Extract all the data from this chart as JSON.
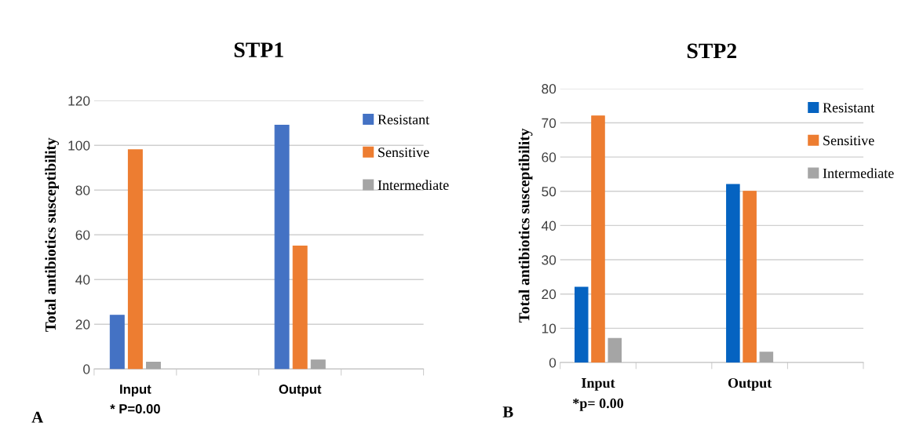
{
  "chart_data": [
    {
      "type": "bar",
      "title": "STP1",
      "ylabel": "Total antibiotics susceptibility",
      "categories": [
        "Input",
        null,
        "Output",
        null
      ],
      "ylim": [
        0,
        120
      ],
      "yticks": [
        0,
        20,
        40,
        60,
        80,
        100,
        120
      ],
      "grid": "y",
      "legend": "top right",
      "annotations": [
        "* P=0.00",
        "A"
      ],
      "series": [
        {
          "name": "Resistant",
          "color": "#4472c4",
          "values": [
            24,
            null,
            109,
            null
          ]
        },
        {
          "name": "Sensitive",
          "color": "#ed7d31",
          "values": [
            98,
            null,
            55,
            null
          ]
        },
        {
          "name": "Intermediate",
          "color": "#a5a5a5",
          "values": [
            3,
            null,
            4,
            null
          ]
        }
      ]
    },
    {
      "type": "bar",
      "title": "STP2",
      "ylabel": "Total antibiotics susceptibility",
      "categories": [
        "Input",
        null,
        "Output",
        null
      ],
      "ylim": [
        0,
        80
      ],
      "yticks": [
        0,
        10,
        20,
        30,
        40,
        50,
        60,
        70,
        80
      ],
      "grid": "y",
      "legend": "top right",
      "annotations": [
        "*p= 0.00",
        "B"
      ],
      "series": [
        {
          "name": "Resistant",
          "color": "#0563c1",
          "values": [
            22,
            null,
            52,
            null
          ]
        },
        {
          "name": "Sensitive",
          "color": "#ed7d31",
          "values": [
            72,
            null,
            50,
            null
          ]
        },
        {
          "name": "Intermediate",
          "color": "#a5a5a5",
          "values": [
            7,
            null,
            3,
            null
          ]
        }
      ]
    }
  ]
}
